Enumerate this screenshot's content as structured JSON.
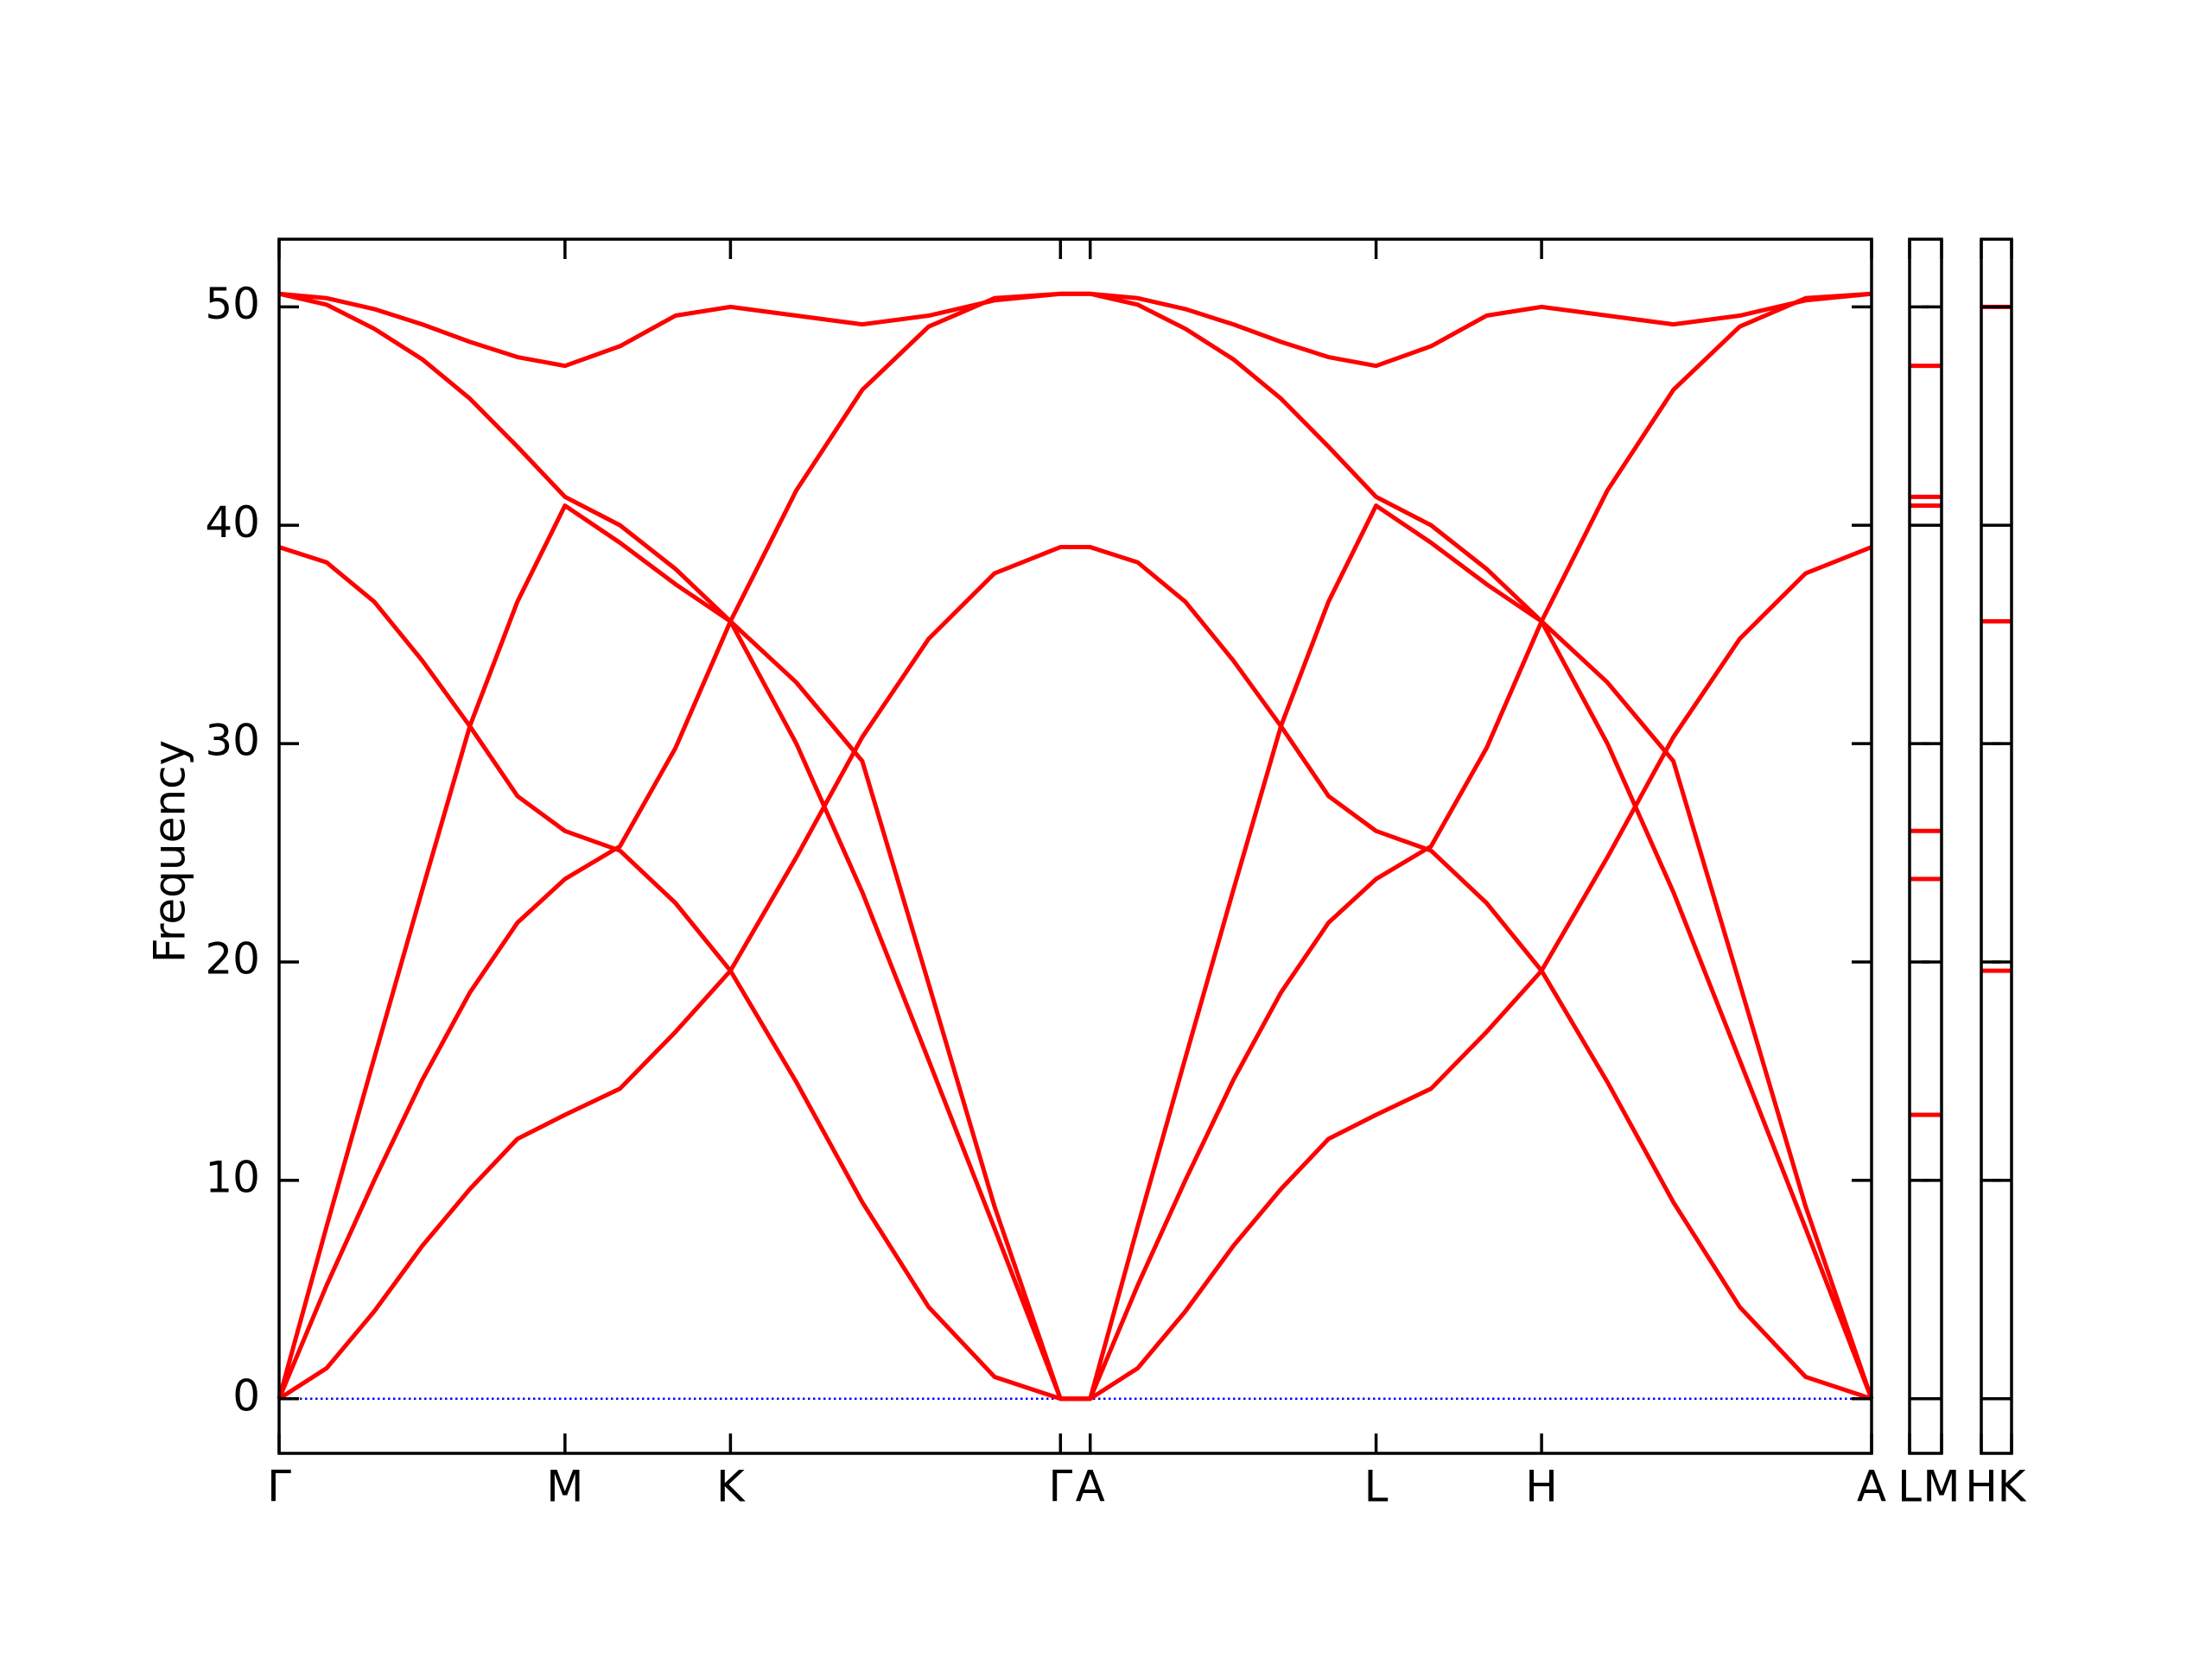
{
  "chart_data": [
    {
      "type": "line",
      "ylabel": "Frequency",
      "x": [
        0,
        0.096,
        0.192,
        0.289,
        0.385,
        0.481,
        0.577,
        0.688,
        0.8,
        0.911,
        1.044,
        1.177,
        1.311,
        1.444,
        1.577,
        1.637,
        1.733,
        1.829,
        1.926,
        2.022,
        2.118,
        2.214,
        2.325,
        2.437,
        2.548,
        2.681,
        2.814,
        2.948,
        3.081,
        3.214
      ],
      "series": [
        {
          "color": "#ff0000",
          "values": [
            0,
            1.4,
            4.0,
            7.0,
            9.6,
            11.9,
            13.0,
            14.2,
            16.8,
            19.6,
            24.8,
            30.3,
            34.8,
            37.8,
            39.0,
            39,
            38.3,
            36.5,
            33.8,
            30.8,
            27.6,
            26.0,
            25.1,
            22.7,
            19.6,
            14.5,
            9.0,
            4.2,
            1.0,
            0
          ]
        },
        {
          "color": "#ff0000",
          "values": [
            39,
            38.3,
            36.5,
            33.8,
            30.8,
            27.6,
            26.0,
            25.1,
            22.7,
            19.6,
            14.5,
            9.0,
            4.2,
            1.0,
            0,
            0,
            1.4,
            4.0,
            7.0,
            9.6,
            11.9,
            13.0,
            14.2,
            16.8,
            19.6,
            24.8,
            30.3,
            34.8,
            37.8,
            39.0
          ]
        },
        {
          "color": "#ff0000",
          "values": [
            0,
            7.9,
            15.6,
            23.3,
            30.8,
            36.5,
            40.9,
            39.2,
            37.3,
            35.6,
            30.0,
            23.2,
            15.5,
            7.8,
            0,
            0,
            7.9,
            15.6,
            23.3,
            30.8,
            36.5,
            40.9,
            39.2,
            37.3,
            35.6,
            30.0,
            23.2,
            15.5,
            7.8,
            0
          ]
        },
        {
          "color": "#ff0000",
          "values": [
            0,
            5.2,
            10.0,
            14.6,
            18.6,
            21.8,
            23.8,
            25.3,
            29.8,
            35.6,
            41.6,
            46.2,
            49.1,
            50.4,
            50.6,
            50.6,
            50.1,
            49.0,
            47.6,
            45.8,
            43.6,
            41.3,
            40.0,
            38.0,
            35.6,
            32.8,
            29.2,
            19.0,
            8.8,
            0
          ]
        },
        {
          "color": "#ff0000",
          "values": [
            50.6,
            50.1,
            49.0,
            47.6,
            45.8,
            43.6,
            41.3,
            40.0,
            38.0,
            35.6,
            32.8,
            29.2,
            19.0,
            8.8,
            0,
            0,
            5.2,
            10.0,
            14.6,
            18.6,
            21.8,
            23.8,
            25.3,
            29.8,
            35.6,
            41.6,
            46.2,
            49.1,
            50.4,
            50.6
          ]
        },
        {
          "color": "#ff0000",
          "values": [
            50.6,
            50.4,
            49.9,
            49.2,
            48.4,
            47.7,
            47.3,
            48.2,
            49.6,
            50.0,
            49.6,
            49.2,
            49.6,
            50.3,
            50.6,
            50.6,
            50.4,
            49.9,
            49.2,
            48.4,
            47.7,
            47.3,
            48.2,
            49.6,
            50.0,
            49.6,
            49.2,
            49.6,
            50.3,
            50.6
          ]
        }
      ],
      "xlim": [
        0,
        3.214
      ],
      "xticks": [
        {
          "value": 0,
          "label": "Γ"
        },
        {
          "value": 0.577,
          "label": "M"
        },
        {
          "value": 0.911,
          "label": "K"
        },
        {
          "value": 1.577,
          "label": "Γ"
        },
        {
          "value": 1.637,
          "label": "A"
        },
        {
          "value": 2.214,
          "label": "L"
        },
        {
          "value": 2.548,
          "label": "H"
        },
        {
          "value": 3.214,
          "label": "A"
        }
      ],
      "ylim": [
        -2.5,
        53.1
      ],
      "yticks": [
        0,
        10,
        20,
        30,
        40,
        50
      ],
      "show_ytick_labels": true,
      "reference_line": {
        "value": 0,
        "color": "#0000ff",
        "style": "dotted"
      }
    },
    {
      "type": "levels",
      "color": "#ff0000",
      "values": [
        13,
        23.8,
        26,
        40.9,
        41.3,
        47.3
      ],
      "xlim": [
        0,
        1
      ],
      "xticks": [
        {
          "value": 0,
          "label": "L"
        },
        {
          "value": 1,
          "label": "M"
        }
      ],
      "ylim": [
        -2.5,
        53.1
      ],
      "yticks": [
        0,
        10,
        20,
        30,
        40,
        50
      ],
      "show_ytick_labels": false,
      "reference_line": {
        "value": 0,
        "color": "#000080",
        "style": "solid"
      }
    },
    {
      "type": "levels",
      "color": "#ff0000",
      "values": [
        19.6,
        35.6,
        50
      ],
      "xlim": [
        0,
        1
      ],
      "xticks": [
        {
          "value": 0,
          "label": "H"
        },
        {
          "value": 1,
          "label": "K"
        }
      ],
      "ylim": [
        -2.5,
        53.1
      ],
      "yticks": [
        0,
        10,
        20,
        30,
        40,
        50
      ],
      "show_ytick_labels": false,
      "reference_line": {
        "value": 0,
        "color": "#000080",
        "style": "solid"
      }
    }
  ]
}
